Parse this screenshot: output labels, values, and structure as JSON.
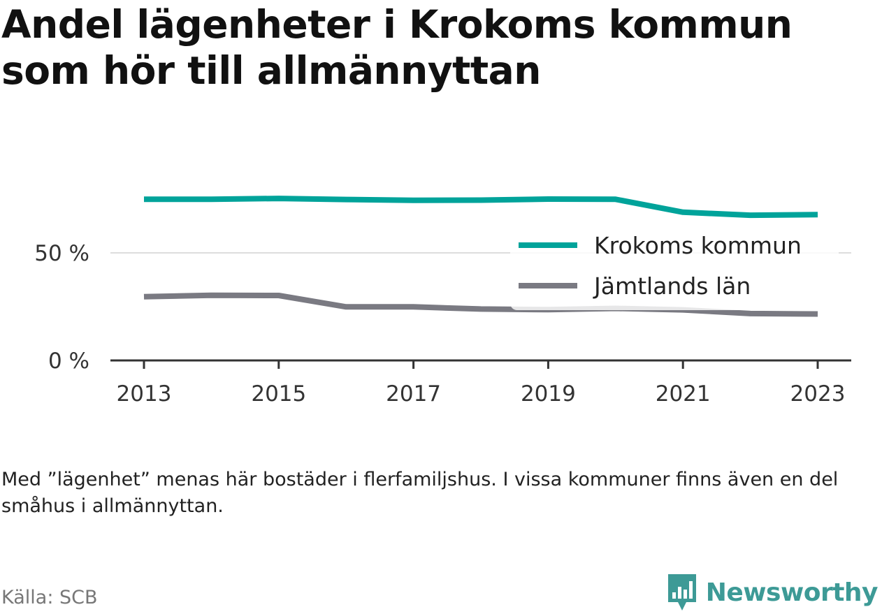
{
  "title": "Andel lägenheter i Krokoms kommun som hör till allmännyttan",
  "note": "Med ”lägenhet” menas här bostäder i flerfamiljshus. I vissa kommuner finns även en del småhus i allmännyttan.",
  "source": "Källa: SCB",
  "brand": {
    "name": "Newsworthy",
    "icon": "newsworthy-logo-icon",
    "color": "#3d9a96"
  },
  "chart_data": {
    "type": "line",
    "x": [
      2013,
      2014,
      2015,
      2016,
      2017,
      2018,
      2019,
      2020,
      2021,
      2022,
      2023
    ],
    "x_ticks": [
      "2013",
      "2015",
      "2017",
      "2019",
      "2021",
      "2023"
    ],
    "y_ticks": [
      {
        "value": 0,
        "label": "0 %"
      },
      {
        "value": 50,
        "label": "50 %"
      }
    ],
    "ylim": [
      0,
      87
    ],
    "grid": true,
    "legend_position": "right, inside plot",
    "series": [
      {
        "name": "Krokoms kommun",
        "color": "#00a39a",
        "values": [
          74.9,
          74.9,
          75.3,
          74.8,
          74.4,
          74.5,
          75.0,
          74.9,
          68.9,
          67.5,
          67.8
        ]
      },
      {
        "name": "Jämtlands län",
        "color": "#7a7a82",
        "values": [
          29.6,
          30.3,
          30.2,
          24.9,
          24.9,
          23.9,
          23.6,
          24.2,
          23.5,
          21.8,
          21.6
        ]
      }
    ]
  }
}
